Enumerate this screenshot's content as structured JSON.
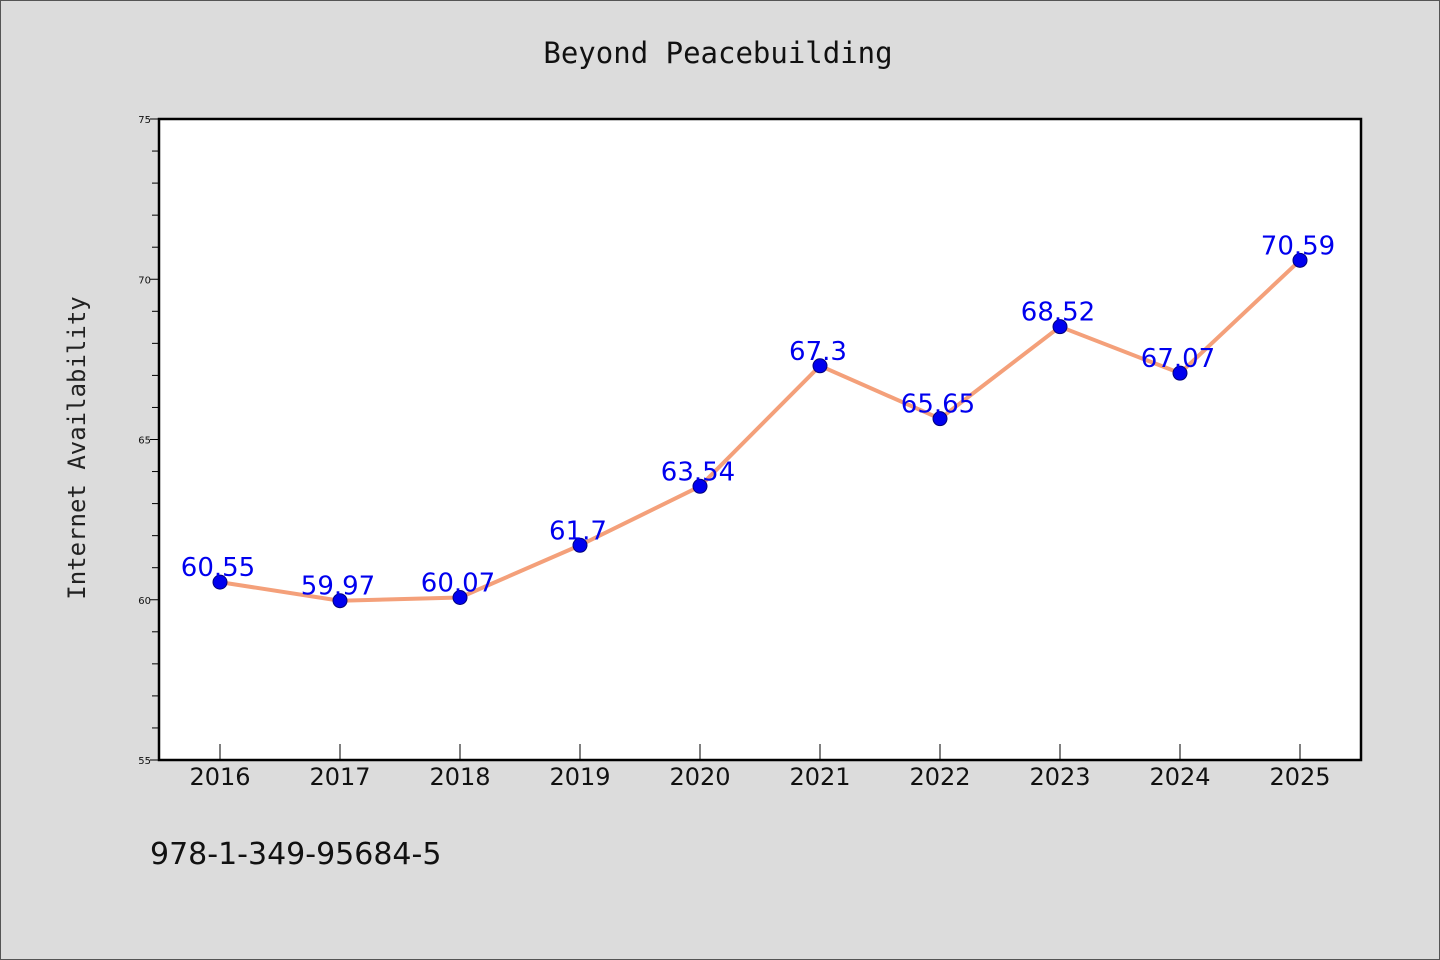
{
  "chart_data": {
    "type": "line",
    "title": "Beyond Peacebuilding",
    "xlabel": "",
    "ylabel": "Internet Availability",
    "categories": [
      "2016",
      "2017",
      "2018",
      "2019",
      "2020",
      "2021",
      "2022",
      "2023",
      "2024",
      "2025"
    ],
    "series": [
      {
        "values": [
          60.55,
          59.97,
          60.07,
          61.7,
          63.54,
          67.3,
          65.65,
          68.52,
          67.07,
          70.59
        ],
        "labels": [
          "60.55",
          "59.97",
          "60.07",
          "61.7",
          "63.54",
          "67.3",
          "65.65",
          "68.52",
          "67.07",
          "70.59"
        ],
        "line_color": "#f4a07a",
        "marker_color": "#0000ee"
      }
    ],
    "ylim": [
      55,
      75
    ],
    "yticks": [
      "55",
      "60",
      "65",
      "70",
      "75"
    ],
    "grid": false,
    "legend": "none"
  },
  "footer": {
    "isbn": "978-1-349-95684-5"
  },
  "colors": {
    "background": "#dcdcdc",
    "plot_background": "#ffffff",
    "axis": "#000000"
  }
}
